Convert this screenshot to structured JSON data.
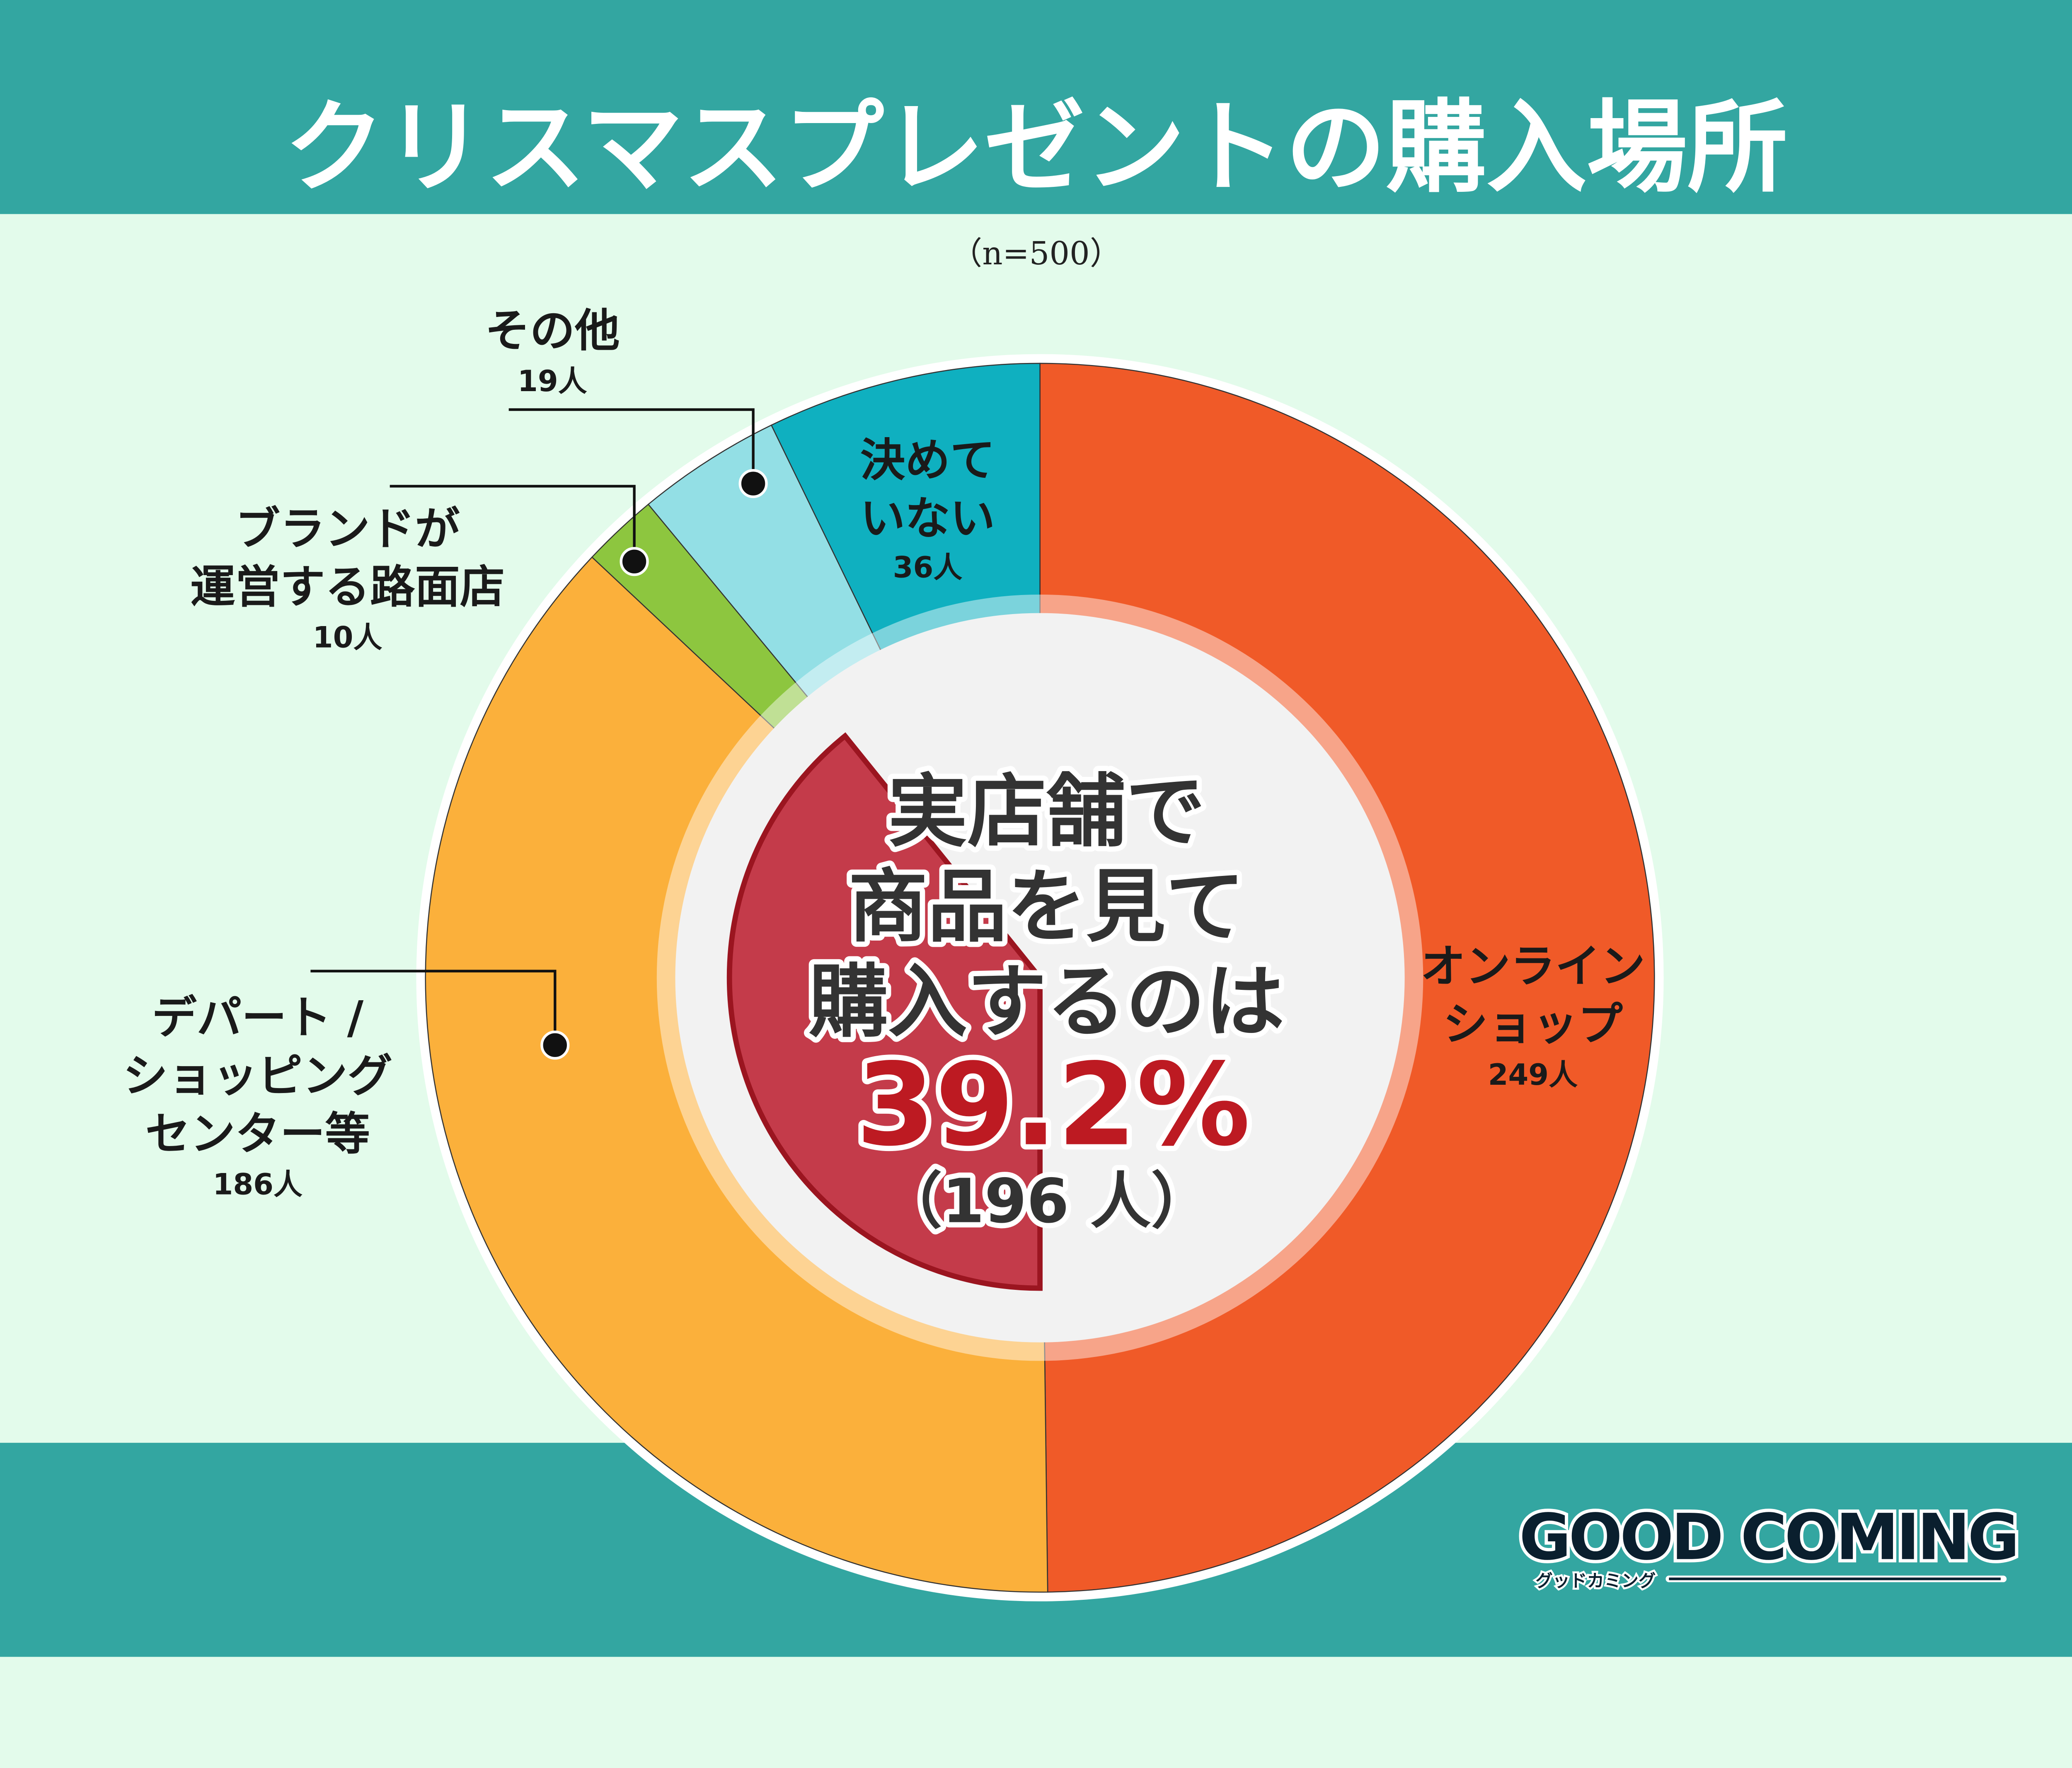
{
  "header": {
    "title": "クリスマスプレゼントの購入場所",
    "sample": "（n=500）"
  },
  "colors": {
    "header_bg": "#33a6a1",
    "page_bg": "#e3fbeb",
    "highlight": "#c43b4a",
    "highlight_text": "#bd1a22"
  },
  "chart_data": {
    "type": "pie",
    "subtype": "donut",
    "title": "クリスマスプレゼントの購入場所",
    "n": 500,
    "unit": "人",
    "series": [
      {
        "label_lines": [
          "オンライン",
          "ショップ"
        ],
        "count_label": "249人",
        "value": 249,
        "color": "#f05a28"
      },
      {
        "label_lines": [
          "デパート /",
          "ショッピング",
          "センター等"
        ],
        "count_label": "186人",
        "value": 186,
        "color": "#fbb03b"
      },
      {
        "label_lines": [
          "ブランドが",
          "運営する路面店"
        ],
        "count_label": "10人",
        "value": 10,
        "color": "#8dc63f"
      },
      {
        "label_lines": [
          "その他"
        ],
        "count_label": "19人",
        "value": 19,
        "color": "#93dfe5"
      },
      {
        "label_lines": [
          "決めて",
          "いない"
        ],
        "count_label": "36人",
        "value": 36,
        "color": "#0fb0c0"
      }
    ],
    "highlight": {
      "lines": [
        "実店舗で",
        "商品を見て",
        "購入するのは"
      ],
      "percent_label": "39.2%",
      "count_label": "（196 人）",
      "percent": 39.2
    }
  },
  "logo": {
    "text": "GOOD COMING",
    "subtext": "グッドカミング"
  }
}
